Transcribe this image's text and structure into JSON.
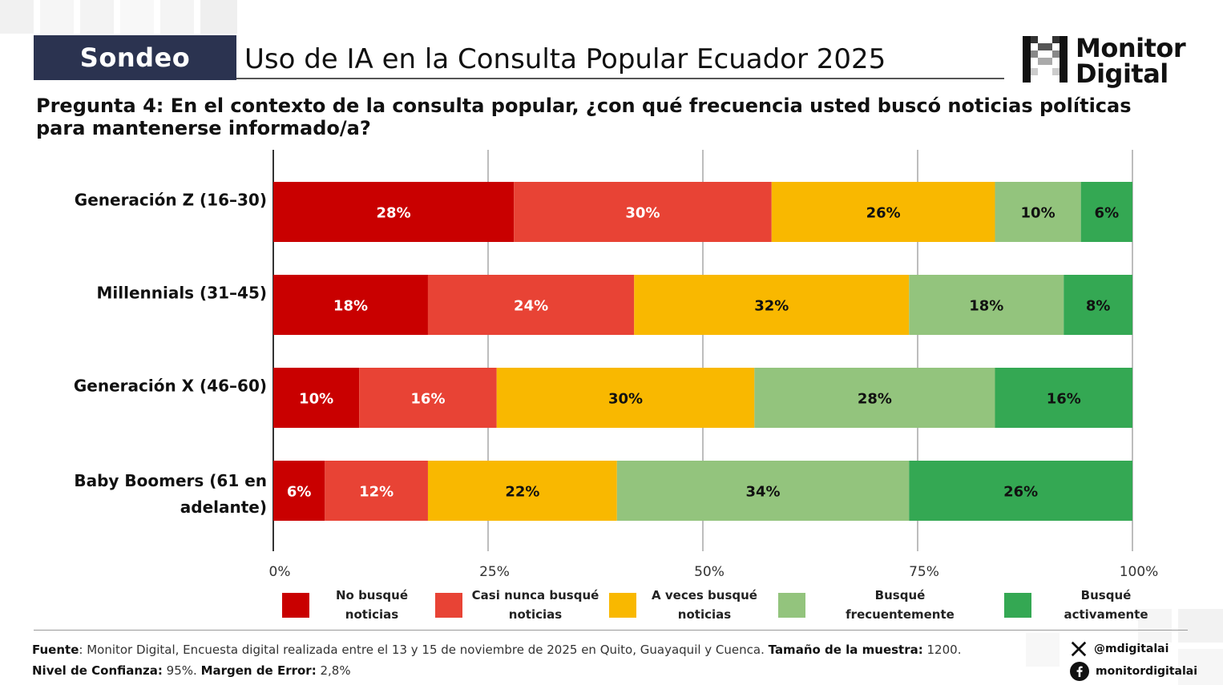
{
  "header": {
    "badge": "Sondeo",
    "title": "Uso de IA en la Consulta Popular Ecuador 2025",
    "logo_line1": "Monitor",
    "logo_line2": "Digital"
  },
  "question": "Pregunta 4: En el contexto de la consulta popular, ¿con qué frecuencia usted buscó noticias políticas para mantenerse informado/a?",
  "colors": {
    "no_busque": "#c90000",
    "casi_nunca": "#e84335",
    "a_veces": "#f9b800",
    "frecuentemente": "#93c47d",
    "activamente": "#34a853"
  },
  "chart_data": {
    "type": "bar",
    "orientation": "horizontal",
    "stacked": true,
    "categories": [
      "Generación Z (16–30)",
      "Millennials (31–45)",
      "Generación X (46–60)",
      "Baby Boomers (61 en adelante)"
    ],
    "category_lines": [
      [
        "Generación Z (16–30)"
      ],
      [
        "Millennials (31–45)"
      ],
      [
        "Generación X (46–60)"
      ],
      [
        "Baby Boomers (61 en",
        "adelante)"
      ]
    ],
    "series": [
      {
        "name": "No busqué noticias",
        "color": "#c90000",
        "label_color": "#ffffff",
        "values": [
          28,
          18,
          10,
          6
        ],
        "labels": [
          "28%",
          "18%",
          "10%",
          "6%"
        ]
      },
      {
        "name": "Casi nunca busqué noticias",
        "color": "#e84335",
        "label_color": "#ffffff",
        "values": [
          30,
          24,
          16,
          12
        ],
        "labels": [
          "30%",
          "24%",
          "16%",
          "12%"
        ]
      },
      {
        "name": "A veces busqué noticias",
        "color": "#f9b800",
        "label_color": "#111111",
        "values": [
          26,
          32,
          30,
          22
        ],
        "labels": [
          "26%",
          "32%",
          "30%",
          "22%"
        ]
      },
      {
        "name": "Busqué frecuentemente",
        "color": "#93c47d",
        "label_color": "#111111",
        "values": [
          10,
          18,
          28,
          34
        ],
        "labels": [
          "10%",
          "18%",
          "28%",
          "34%"
        ]
      },
      {
        "name": "Busqué activamente",
        "color": "#34a853",
        "label_color": "#111111",
        "values": [
          6,
          8,
          16,
          26
        ],
        "labels": [
          "6%",
          "8%",
          "16%",
          "26%"
        ]
      }
    ],
    "xlim": [
      0,
      100
    ],
    "xticks": [
      0,
      25,
      50,
      75,
      100
    ],
    "xtick_labels": [
      "0%",
      "25%",
      "50%",
      "75%",
      "100%"
    ],
    "grid": true,
    "legend_position": "bottom"
  },
  "legend": [
    {
      "line1": "No busqué",
      "line2": "noticias"
    },
    {
      "line1": "Casi nunca busqué",
      "line2": "noticias"
    },
    {
      "line1": "A veces busqué",
      "line2": "noticias"
    },
    {
      "line1": "Busqué frecuentemente",
      "line2": ""
    },
    {
      "line1": "Busqué activamente",
      "line2": ""
    }
  ],
  "footer": {
    "fuente_label": "Fuente",
    "fuente_text": ": Monitor Digital, Encuesta digital realizada entre el 13 y 15 de noviembre de 2025 en Quito, Guayaquil y Cuenca. ",
    "muestra_label": "Tamaño de la muestra:",
    "muestra_value": " 1200.",
    "confianza_label": "Nivel de Confianza:",
    "confianza_value": " 95%. ",
    "margen_label": "Margen de Error:",
    "margen_value": " 2,8%"
  },
  "social": {
    "x_handle": "@mdigitalai",
    "fb_handle": "monitordigitalai",
    "x_icon": "x-logo-icon",
    "fb_icon": "facebook-icon"
  }
}
